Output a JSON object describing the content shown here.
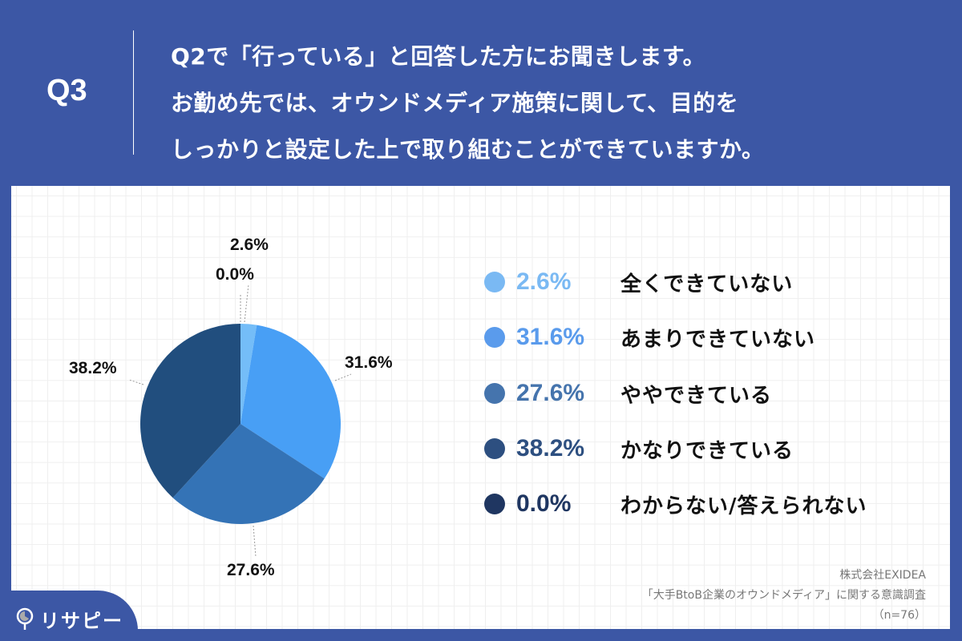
{
  "header": {
    "question_number": "Q3",
    "question_lines": [
      "Q2で「行っている」と回答した方にお聞きします。",
      "お勤め先では、オウンドメディア施策に関して、目的を",
      "しっかりと設定した上で取り組むことができていますか。"
    ]
  },
  "chart_data": {
    "type": "pie",
    "title": "お勤め先では、オウンドメディア施策に関して、目的をしっかりと設定した上で取り組むことができていますか。",
    "categories": [
      "全くできていない",
      "あまりできていない",
      "ややできている",
      "かなりできている",
      "わからない/答えられない"
    ],
    "values": [
      2.6,
      31.6,
      27.6,
      38.2,
      0.0
    ],
    "labels": [
      "2.6%",
      "31.6%",
      "27.6%",
      "38.2%",
      "0.0%"
    ],
    "colors": [
      "#74bdf8",
      "#489ff5",
      "#3473b6",
      "#214e7e",
      "#1d3460"
    ],
    "legend_position": "right",
    "start_angle": "12 o'clock, clockwise",
    "n": 76
  },
  "legend": [
    {
      "pct": "2.6%",
      "label": "全くできていない",
      "color": "#7ab9f3"
    },
    {
      "pct": "31.6%",
      "label": "あまりできていない",
      "color": "#5a9bec"
    },
    {
      "pct": "27.6%",
      "label": "ややできている",
      "color": "#4574ad"
    },
    {
      "pct": "38.2%",
      "label": "かなりできている",
      "color": "#2d4f80"
    },
    {
      "pct": "0.0%",
      "label": "わからない/答えられない",
      "color": "#1f3661"
    }
  ],
  "slice_labels": {
    "s0": "2.6%",
    "s1": "31.6%",
    "s2": "27.6%",
    "s3": "38.2%",
    "s4": "0.0%"
  },
  "source": {
    "company": "株式会社EXIDEA",
    "survey": "「大手BtoB企業のオウンドメディア」に関する意識調査",
    "sample": "（n=76）"
  },
  "logo": {
    "text": "リサピー"
  }
}
